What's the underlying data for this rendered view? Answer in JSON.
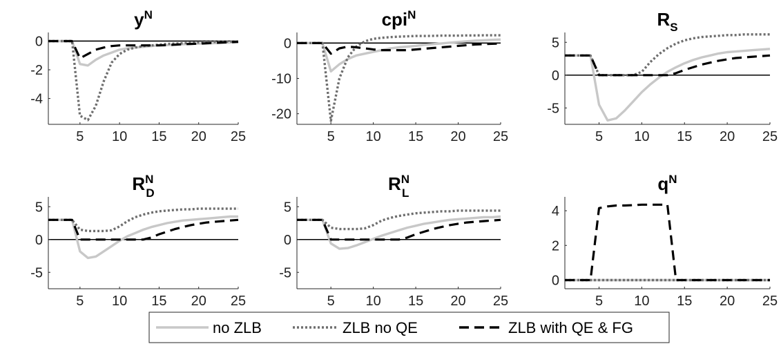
{
  "chart_data": [
    {
      "type": "line",
      "title": {
        "main": "y",
        "sup": "N",
        "sub": ""
      },
      "xlim": [
        1,
        25
      ],
      "ylim": [
        -5.8,
        0.6
      ],
      "xticks": [
        5,
        10,
        15,
        20,
        25
      ],
      "yticks": [
        -4,
        -2,
        0
      ],
      "x": [
        1,
        2,
        3,
        4,
        5,
        6,
        7,
        8,
        9,
        10,
        11,
        12,
        13,
        14,
        15,
        16,
        17,
        18,
        19,
        20,
        21,
        22,
        23,
        24,
        25
      ],
      "series": [
        {
          "key": "noZLB",
          "values": [
            0,
            0,
            0,
            0,
            -1.6,
            -1.7,
            -1.3,
            -1.0,
            -0.8,
            -0.6,
            -0.5,
            -0.45,
            -0.4,
            -0.35,
            -0.3,
            -0.28,
            -0.25,
            -0.22,
            -0.2,
            -0.18,
            -0.16,
            -0.14,
            -0.12,
            -0.1,
            -0.08
          ]
        },
        {
          "key": "zlbNoQE",
          "values": [
            0,
            0,
            0,
            0,
            -5.2,
            -5.5,
            -4.5,
            -2.8,
            -1.5,
            -0.9,
            -0.6,
            -0.45,
            -0.35,
            -0.3,
            -0.25,
            -0.2,
            -0.18,
            -0.15,
            -0.12,
            -0.1,
            -0.08,
            -0.06,
            -0.05,
            -0.04,
            -0.03
          ]
        },
        {
          "key": "zlbQEFG",
          "values": [
            0,
            0,
            0,
            0,
            -1.2,
            -0.9,
            -0.6,
            -0.45,
            -0.35,
            -0.3,
            -0.3,
            -0.3,
            -0.3,
            -0.3,
            -0.3,
            -0.28,
            -0.25,
            -0.22,
            -0.2,
            -0.18,
            -0.15,
            -0.12,
            -0.1,
            -0.08,
            -0.05
          ]
        }
      ]
    },
    {
      "type": "line",
      "title": {
        "main": "cpi",
        "sup": "N",
        "sub": ""
      },
      "xlim": [
        1,
        25
      ],
      "ylim": [
        -23,
        3
      ],
      "xticks": [
        5,
        10,
        15,
        20,
        25
      ],
      "yticks": [
        -20,
        -10,
        0
      ],
      "x": [
        1,
        2,
        3,
        4,
        5,
        6,
        7,
        8,
        9,
        10,
        11,
        12,
        13,
        14,
        15,
        16,
        17,
        18,
        19,
        20,
        21,
        22,
        23,
        24,
        25
      ],
      "series": [
        {
          "key": "noZLB",
          "values": [
            0,
            0,
            0,
            0,
            -8,
            -6,
            -4.5,
            -3.5,
            -3,
            -2.5,
            -2,
            -1.5,
            -1.2,
            -1,
            -0.8,
            -0.5,
            -0.3,
            -0.1,
            0.1,
            0.3,
            0.5,
            0.7,
            0.8,
            0.9,
            1.0
          ]
        },
        {
          "key": "zlbNoQE",
          "values": [
            0,
            0,
            0,
            0,
            -22,
            -10,
            -4,
            -1,
            0.5,
            1.2,
            1.5,
            1.7,
            1.8,
            1.9,
            2.0,
            2.0,
            2.05,
            2.1,
            2.1,
            2.1,
            2.15,
            2.15,
            2.2,
            2.2,
            2.2
          ]
        },
        {
          "key": "zlbQEFG",
          "values": [
            0,
            0,
            0,
            0,
            -3,
            -1.5,
            -1,
            -1.2,
            -1.5,
            -1.8,
            -2.0,
            -2.0,
            -2.0,
            -2.0,
            -1.8,
            -1.6,
            -1.4,
            -1.2,
            -1.0,
            -0.8,
            -0.6,
            -0.4,
            -0.3,
            -0.2,
            -0.1
          ]
        }
      ]
    },
    {
      "type": "line",
      "title": {
        "main": "R",
        "sup": "",
        "sub": "S"
      },
      "xlim": [
        1,
        25
      ],
      "ylim": [
        -7.5,
        6.5
      ],
      "xticks": [
        5,
        10,
        15,
        20,
        25
      ],
      "yticks": [
        -5,
        0,
        5
      ],
      "x": [
        1,
        2,
        3,
        4,
        5,
        6,
        7,
        8,
        9,
        10,
        11,
        12,
        13,
        14,
        15,
        16,
        17,
        18,
        19,
        20,
        21,
        22,
        23,
        24,
        25
      ],
      "series": [
        {
          "key": "noZLB",
          "values": [
            3,
            3,
            3,
            3,
            -4.5,
            -6.9,
            -6.6,
            -5.4,
            -4.0,
            -2.6,
            -1.4,
            -0.4,
            0.5,
            1.2,
            1.8,
            2.3,
            2.7,
            3.0,
            3.3,
            3.5,
            3.6,
            3.7,
            3.8,
            3.9,
            4.0
          ]
        },
        {
          "key": "zlbNoQE",
          "values": [
            3,
            3,
            3,
            3,
            0,
            0,
            0,
            0,
            0,
            0.5,
            2.0,
            3.2,
            4.1,
            4.8,
            5.3,
            5.6,
            5.8,
            5.9,
            6.0,
            6.1,
            6.1,
            6.2,
            6.2,
            6.2,
            6.2
          ]
        },
        {
          "key": "zlbQEFG",
          "values": [
            3,
            3,
            3,
            3,
            0,
            0,
            0,
            0,
            0,
            0,
            0,
            0,
            0,
            0.3,
            0.8,
            1.2,
            1.6,
            1.9,
            2.2,
            2.4,
            2.6,
            2.7,
            2.8,
            2.9,
            3.0
          ]
        }
      ]
    },
    {
      "type": "line",
      "title": {
        "main": "R",
        "sup": "N",
        "sub": "D"
      },
      "xlim": [
        1,
        25
      ],
      "ylim": [
        -7.5,
        6.5
      ],
      "xticks": [
        5,
        10,
        15,
        20,
        25
      ],
      "yticks": [
        -5,
        0,
        5
      ],
      "x": [
        1,
        2,
        3,
        4,
        5,
        6,
        7,
        8,
        9,
        10,
        11,
        12,
        13,
        14,
        15,
        16,
        17,
        18,
        19,
        20,
        21,
        22,
        23,
        24,
        25
      ],
      "series": [
        {
          "key": "noZLB",
          "values": [
            3,
            3,
            3,
            3,
            -1.8,
            -2.8,
            -2.6,
            -1.8,
            -1.0,
            -0.2,
            0.5,
            1.0,
            1.5,
            1.9,
            2.2,
            2.5,
            2.7,
            2.9,
            3.0,
            3.1,
            3.2,
            3.3,
            3.4,
            3.5,
            3.5
          ]
        },
        {
          "key": "zlbNoQE",
          "values": [
            3,
            3,
            3,
            3,
            1.5,
            1.3,
            1.3,
            1.3,
            1.4,
            2.0,
            2.8,
            3.4,
            3.8,
            4.1,
            4.3,
            4.4,
            4.5,
            4.6,
            4.6,
            4.7,
            4.7,
            4.7,
            4.7,
            4.7,
            4.7
          ]
        },
        {
          "key": "zlbQEFG",
          "values": [
            3,
            3,
            3,
            3,
            0,
            0,
            0,
            0,
            0,
            0,
            0,
            0,
            0,
            0.3,
            0.8,
            1.2,
            1.6,
            1.9,
            2.2,
            2.4,
            2.6,
            2.7,
            2.8,
            2.9,
            3.0
          ]
        }
      ]
    },
    {
      "type": "line",
      "title": {
        "main": "R",
        "sup": "N",
        "sub": "L"
      },
      "xlim": [
        1,
        25
      ],
      "ylim": [
        -7.5,
        6.5
      ],
      "xticks": [
        5,
        10,
        15,
        20,
        25
      ],
      "yticks": [
        -5,
        0,
        5
      ],
      "x": [
        1,
        2,
        3,
        4,
        5,
        6,
        7,
        8,
        9,
        10,
        11,
        12,
        13,
        14,
        15,
        16,
        17,
        18,
        19,
        20,
        21,
        22,
        23,
        24,
        25
      ],
      "series": [
        {
          "key": "noZLB",
          "values": [
            3,
            3,
            3,
            3,
            -0.6,
            -1.4,
            -1.3,
            -0.9,
            -0.4,
            0.1,
            0.6,
            1.0,
            1.4,
            1.8,
            2.1,
            2.4,
            2.6,
            2.8,
            3.0,
            3.1,
            3.2,
            3.3,
            3.4,
            3.4,
            3.5
          ]
        },
        {
          "key": "zlbNoQE",
          "values": [
            3,
            3,
            3,
            3,
            1.8,
            1.6,
            1.6,
            1.6,
            1.7,
            2.2,
            2.9,
            3.3,
            3.6,
            3.8,
            4.0,
            4.1,
            4.2,
            4.3,
            4.3,
            4.4,
            4.4,
            4.4,
            4.4,
            4.4,
            4.4
          ]
        },
        {
          "key": "zlbQEFG",
          "values": [
            3,
            3,
            3,
            3,
            0,
            0,
            0,
            0,
            0,
            0,
            0,
            0,
            0,
            0.3,
            0.8,
            1.2,
            1.6,
            1.9,
            2.2,
            2.4,
            2.6,
            2.7,
            2.8,
            2.9,
            3.0
          ]
        }
      ]
    },
    {
      "type": "line",
      "title": {
        "main": "q",
        "sup": "N",
        "sub": ""
      },
      "xlim": [
        1,
        25
      ],
      "ylim": [
        -0.5,
        4.8
      ],
      "xticks": [
        5,
        10,
        15,
        20,
        25
      ],
      "yticks": [
        0,
        2,
        4
      ],
      "x": [
        1,
        2,
        3,
        4,
        5,
        6,
        7,
        8,
        9,
        10,
        11,
        12,
        13,
        14,
        15,
        16,
        17,
        18,
        19,
        20,
        21,
        22,
        23,
        24,
        25
      ],
      "series": [
        {
          "key": "noZLB",
          "values": [
            0,
            0,
            0,
            0,
            0,
            0,
            0,
            0,
            0,
            0,
            0,
            0,
            0,
            0,
            0,
            0,
            0,
            0,
            0,
            0,
            0,
            0,
            0,
            0,
            0
          ]
        },
        {
          "key": "zlbNoQE",
          "values": [
            0,
            0,
            0,
            0,
            0,
            0,
            0,
            0,
            0,
            0,
            0,
            0,
            0,
            0,
            0,
            0,
            0,
            0,
            0,
            0,
            0,
            0,
            0,
            0,
            0
          ]
        },
        {
          "key": "zlbQEFG",
          "values": [
            0,
            0,
            0,
            0,
            4.15,
            4.25,
            4.3,
            4.3,
            4.32,
            4.35,
            4.35,
            4.35,
            4.35,
            0,
            0,
            0,
            0,
            0,
            0,
            0,
            0,
            0,
            0,
            0,
            0
          ]
        }
      ]
    }
  ],
  "legend": {
    "position": "bottom",
    "entries": [
      {
        "key": "noZLB",
        "label": "no ZLB"
      },
      {
        "key": "zlbNoQE",
        "label": "ZLB no QE"
      },
      {
        "key": "zlbQEFG",
        "label": "ZLB with QE & FG"
      }
    ]
  },
  "styles": {
    "noZLB": {
      "color": "#c8c8c8",
      "dash": "none"
    },
    "zlbNoQE": {
      "color": "#6e6e6e",
      "dash": "3 3"
    },
    "zlbQEFG": {
      "color": "#000000",
      "dash": "14 8"
    }
  }
}
